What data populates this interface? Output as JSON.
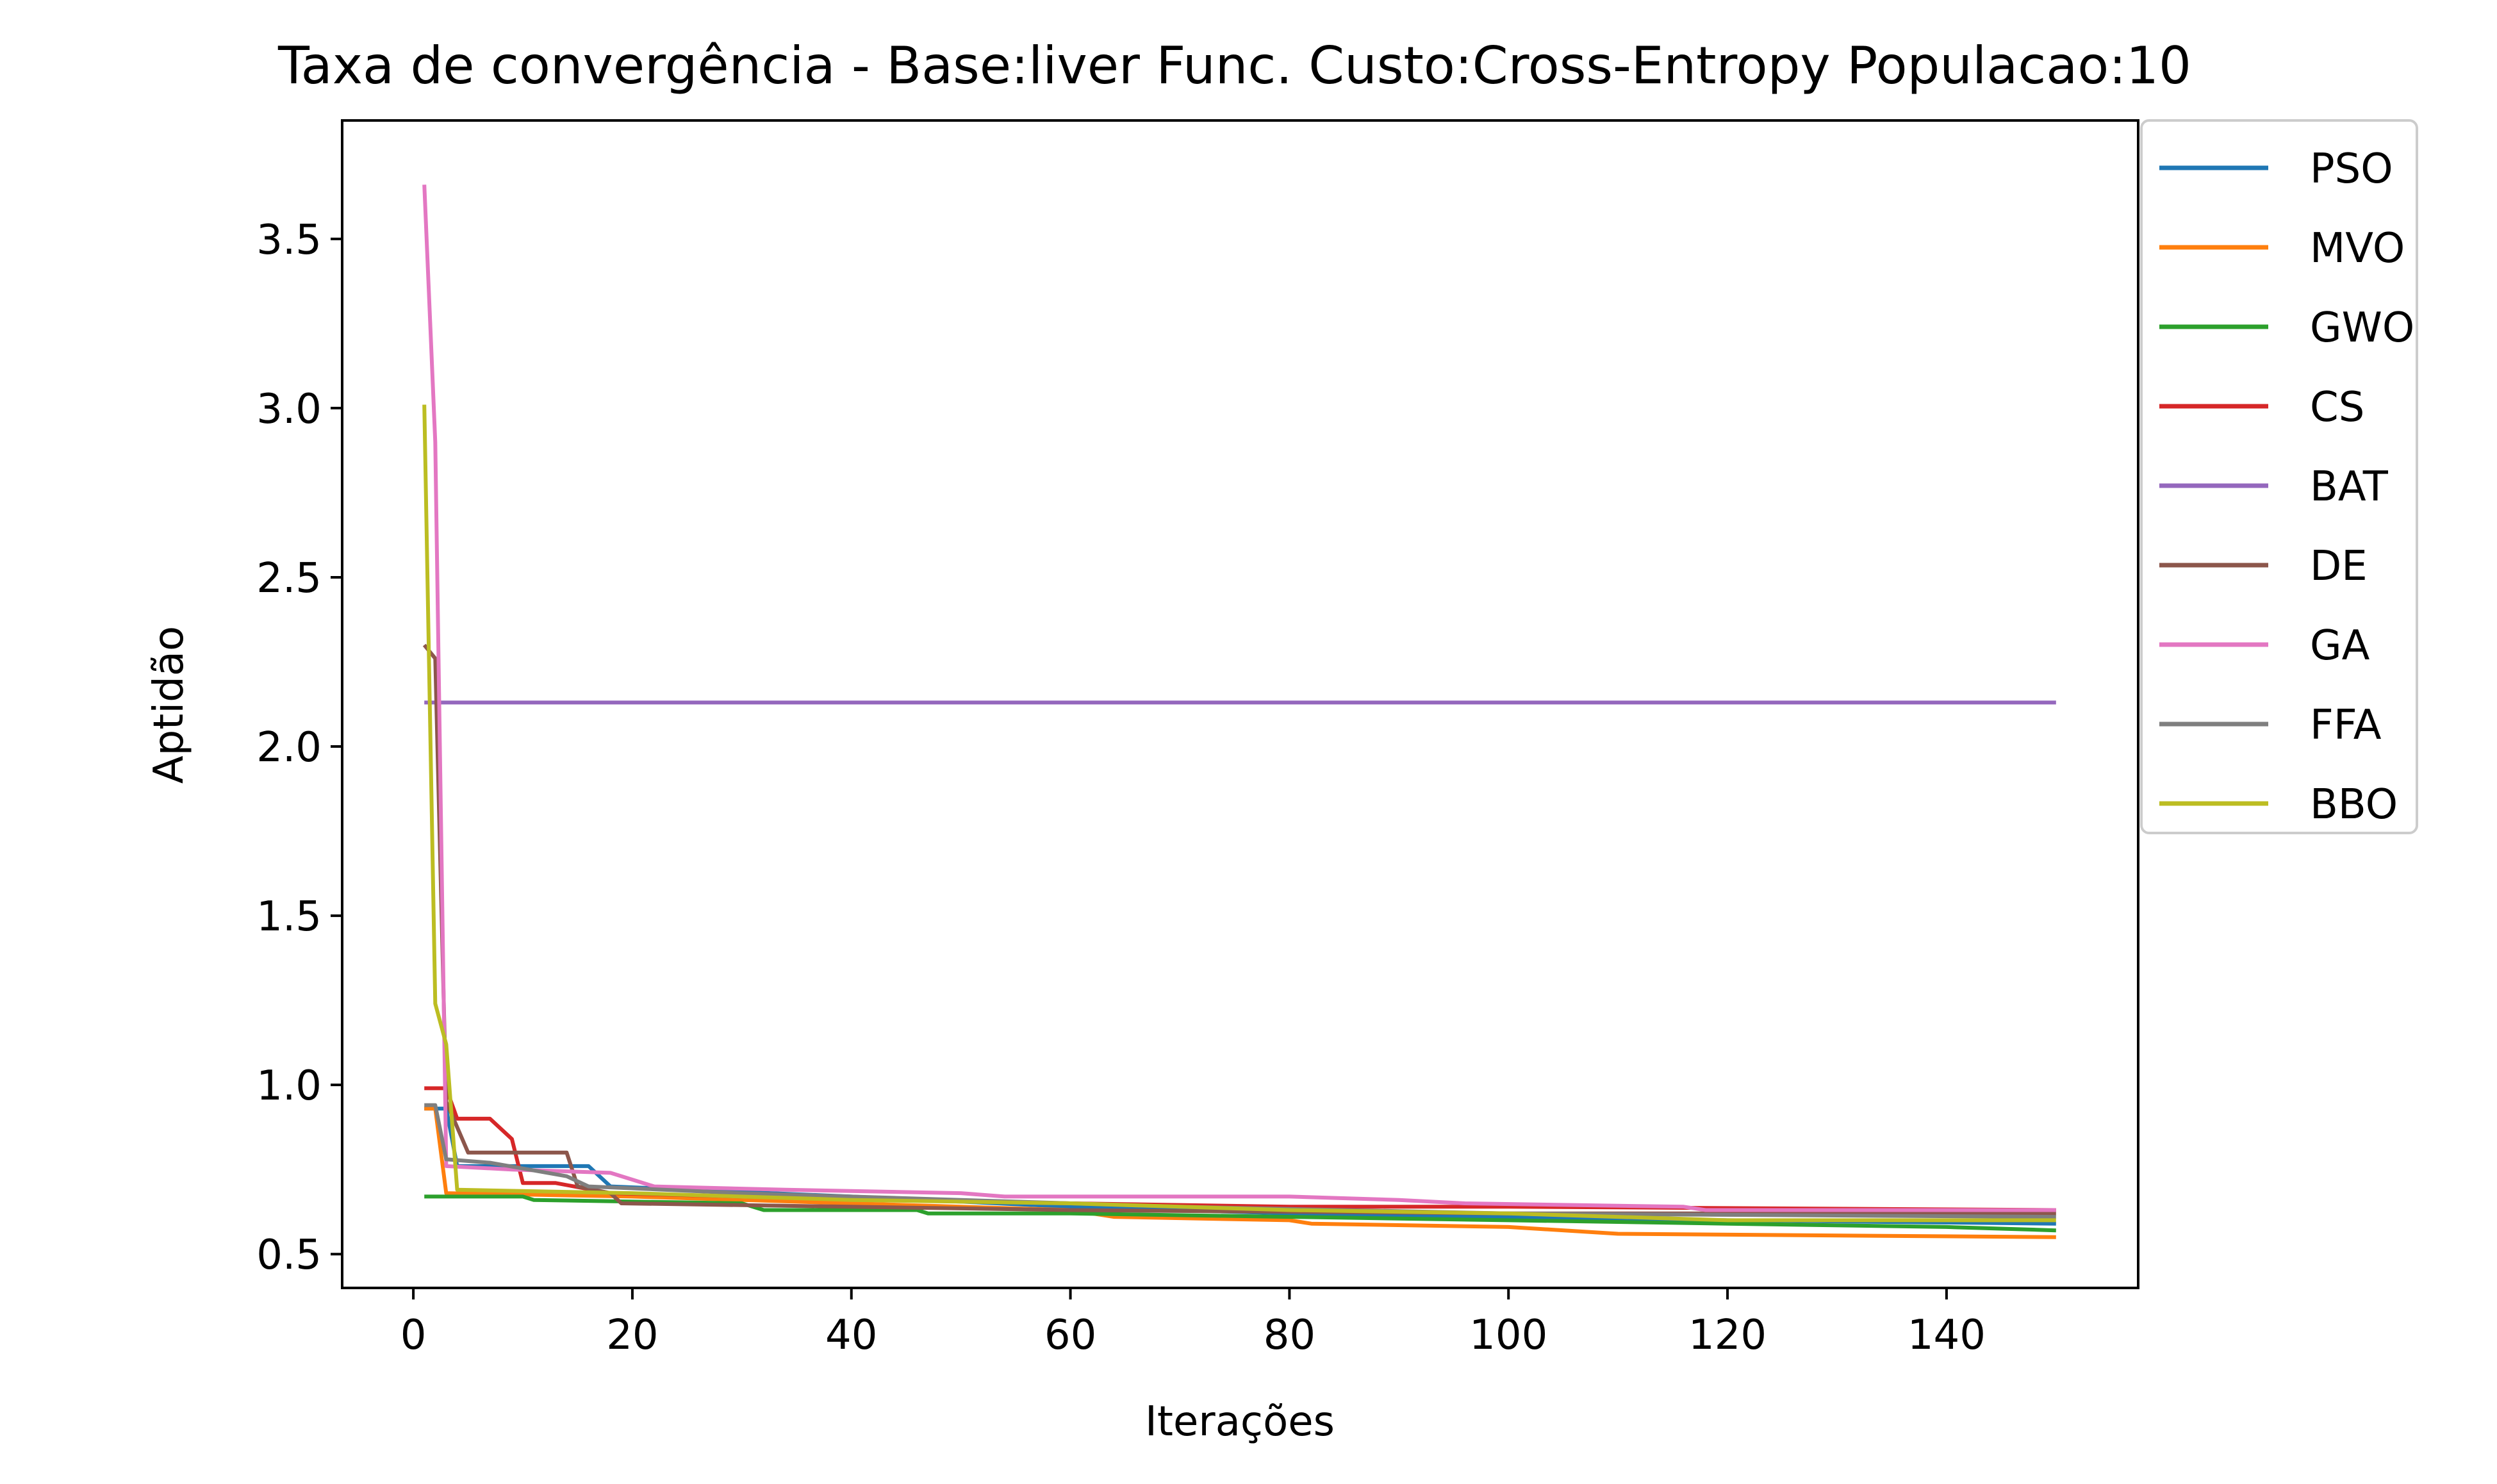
{
  "chart_data": {
    "type": "line",
    "title": "Taxa de convergência - Base:liver Func. Custo:Cross-Entropy Populacao:10",
    "xlabel": "Iterações",
    "ylabel": "Aptidão",
    "xlim": [
      -6.5,
      157.5
    ],
    "ylim": [
      0.4,
      3.85
    ],
    "xticks": [
      0,
      20,
      40,
      60,
      80,
      100,
      120,
      140
    ],
    "xtick_labels": [
      "0",
      "20",
      "40",
      "60",
      "80",
      "100",
      "120",
      "140"
    ],
    "yticks": [
      0.5,
      1.0,
      1.5,
      2.0,
      2.5,
      3.0,
      3.5
    ],
    "ytick_labels": [
      "0.5",
      "1.0",
      "1.5",
      "2.0",
      "2.5",
      "3.0",
      "3.5"
    ],
    "grid": false,
    "legend_position": "outside top-right",
    "series": [
      {
        "name": "PSO",
        "color": "#1f77b4",
        "points": [
          [
            1,
            0.93
          ],
          [
            3,
            0.93
          ],
          [
            4,
            0.76
          ],
          [
            16,
            0.76
          ],
          [
            18,
            0.7
          ],
          [
            40,
            0.67
          ],
          [
            60,
            0.64
          ],
          [
            80,
            0.62
          ],
          [
            100,
            0.61
          ],
          [
            120,
            0.6
          ],
          [
            150,
            0.59
          ]
        ]
      },
      {
        "name": "MVO",
        "color": "#ff7f0e",
        "points": [
          [
            1,
            0.93
          ],
          [
            2,
            0.93
          ],
          [
            3,
            0.68
          ],
          [
            20,
            0.67
          ],
          [
            40,
            0.65
          ],
          [
            60,
            0.63
          ],
          [
            64,
            0.61
          ],
          [
            80,
            0.6
          ],
          [
            82,
            0.59
          ],
          [
            100,
            0.58
          ],
          [
            110,
            0.56
          ],
          [
            150,
            0.55
          ]
        ]
      },
      {
        "name": "GWO",
        "color": "#2ca02c",
        "points": [
          [
            1,
            0.67
          ],
          [
            10,
            0.67
          ],
          [
            11,
            0.66
          ],
          [
            30,
            0.65
          ],
          [
            32,
            0.63
          ],
          [
            46,
            0.63
          ],
          [
            47,
            0.62
          ],
          [
            60,
            0.62
          ],
          [
            80,
            0.61
          ],
          [
            100,
            0.6
          ],
          [
            120,
            0.59
          ],
          [
            140,
            0.58
          ],
          [
            150,
            0.57
          ]
        ]
      },
      {
        "name": "CS",
        "color": "#d62728",
        "points": [
          [
            1,
            0.99
          ],
          [
            3,
            0.99
          ],
          [
            4,
            0.9
          ],
          [
            7,
            0.9
          ],
          [
            9,
            0.84
          ],
          [
            10,
            0.71
          ],
          [
            13,
            0.71
          ],
          [
            18,
            0.68
          ],
          [
            30,
            0.67
          ],
          [
            60,
            0.65
          ],
          [
            80,
            0.64
          ],
          [
            100,
            0.64
          ],
          [
            150,
            0.63
          ]
        ]
      },
      {
        "name": "BAT",
        "color": "#9467bd",
        "points": [
          [
            1,
            2.13
          ],
          [
            150,
            2.13
          ]
        ]
      },
      {
        "name": "DE",
        "color": "#8c564b",
        "points": [
          [
            1,
            2.3
          ],
          [
            2,
            2.26
          ],
          [
            3,
            0.95
          ],
          [
            5,
            0.8
          ],
          [
            14,
            0.8
          ],
          [
            15,
            0.7
          ],
          [
            18,
            0.68
          ],
          [
            19,
            0.65
          ],
          [
            40,
            0.64
          ],
          [
            60,
            0.63
          ],
          [
            100,
            0.62
          ],
          [
            150,
            0.62
          ]
        ]
      },
      {
        "name": "GA",
        "color": "#e377c2",
        "points": [
          [
            1,
            3.66
          ],
          [
            2,
            2.9
          ],
          [
            3,
            0.76
          ],
          [
            9,
            0.75
          ],
          [
            18,
            0.74
          ],
          [
            20,
            0.72
          ],
          [
            22,
            0.7
          ],
          [
            34,
            0.69
          ],
          [
            50,
            0.68
          ],
          [
            54,
            0.67
          ],
          [
            80,
            0.67
          ],
          [
            90,
            0.66
          ],
          [
            96,
            0.65
          ],
          [
            116,
            0.64
          ],
          [
            118,
            0.63
          ],
          [
            150,
            0.63
          ]
        ]
      },
      {
        "name": "FFA",
        "color": "#7f7f7f",
        "points": [
          [
            1,
            0.94
          ],
          [
            2,
            0.94
          ],
          [
            3,
            0.78
          ],
          [
            7,
            0.77
          ],
          [
            14,
            0.73
          ],
          [
            16,
            0.7
          ],
          [
            30,
            0.68
          ],
          [
            50,
            0.66
          ],
          [
            70,
            0.64
          ],
          [
            100,
            0.62
          ],
          [
            150,
            0.61
          ]
        ]
      },
      {
        "name": "BBO",
        "color": "#bcbd22",
        "points": [
          [
            1,
            3.01
          ],
          [
            2,
            1.24
          ],
          [
            3,
            1.12
          ],
          [
            4,
            0.69
          ],
          [
            20,
            0.68
          ],
          [
            40,
            0.66
          ],
          [
            60,
            0.65
          ],
          [
            80,
            0.63
          ],
          [
            100,
            0.62
          ],
          [
            120,
            0.6
          ],
          [
            150,
            0.6
          ]
        ]
      }
    ]
  }
}
